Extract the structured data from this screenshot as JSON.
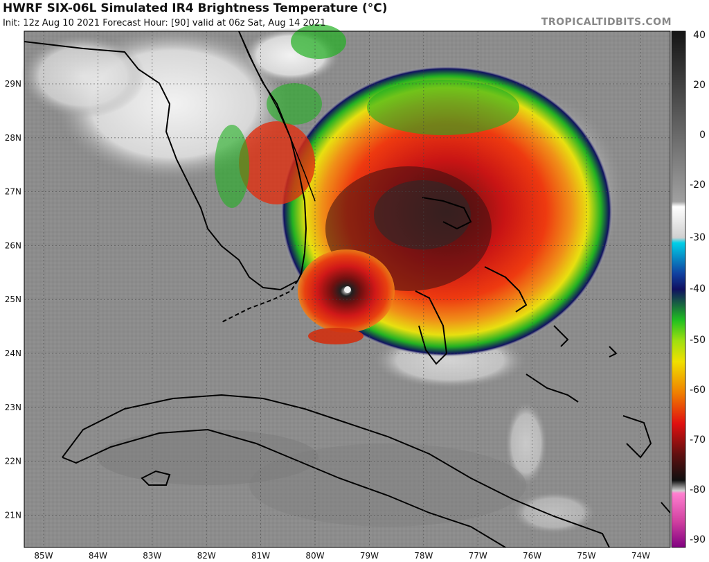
{
  "header": {
    "title": "HWRF SIX-06L Simulated IR4 Brightness Temperature (°C)",
    "subtitle": "Init: 12z Aug 10 2021    Forecast Hour: [90]    valid at 06z Sat, Aug 14 2021",
    "brand": "TROPICALTIDBITS.COM"
  },
  "map": {
    "lat_labels": [
      "29N",
      "28N",
      "27N",
      "26N",
      "25N",
      "24N",
      "23N",
      "22N",
      "21N"
    ],
    "lon_labels": [
      "85W",
      "84W",
      "83W",
      "82W",
      "81W",
      "80W",
      "79W",
      "78W",
      "77W",
      "76W",
      "75W",
      "74W"
    ]
  },
  "colorbar": {
    "labels": [
      "40",
      "20",
      "0",
      "-20",
      "-30",
      "-40",
      "-50",
      "-60",
      "-70",
      "-80",
      "-90"
    ],
    "colors": {
      "warm_top": "#151515",
      "mid_gray": "#9a9a9a",
      "white": "#f2f2f2",
      "cyan": "#00c8e0",
      "navy": "#101060",
      "green": "#22b022",
      "yellow": "#f0e000",
      "orange": "#f08000",
      "red": "#d01010",
      "darkred": "#601010",
      "black": "#000000",
      "pink": "#ff66cc",
      "purple": "#800080"
    }
  }
}
